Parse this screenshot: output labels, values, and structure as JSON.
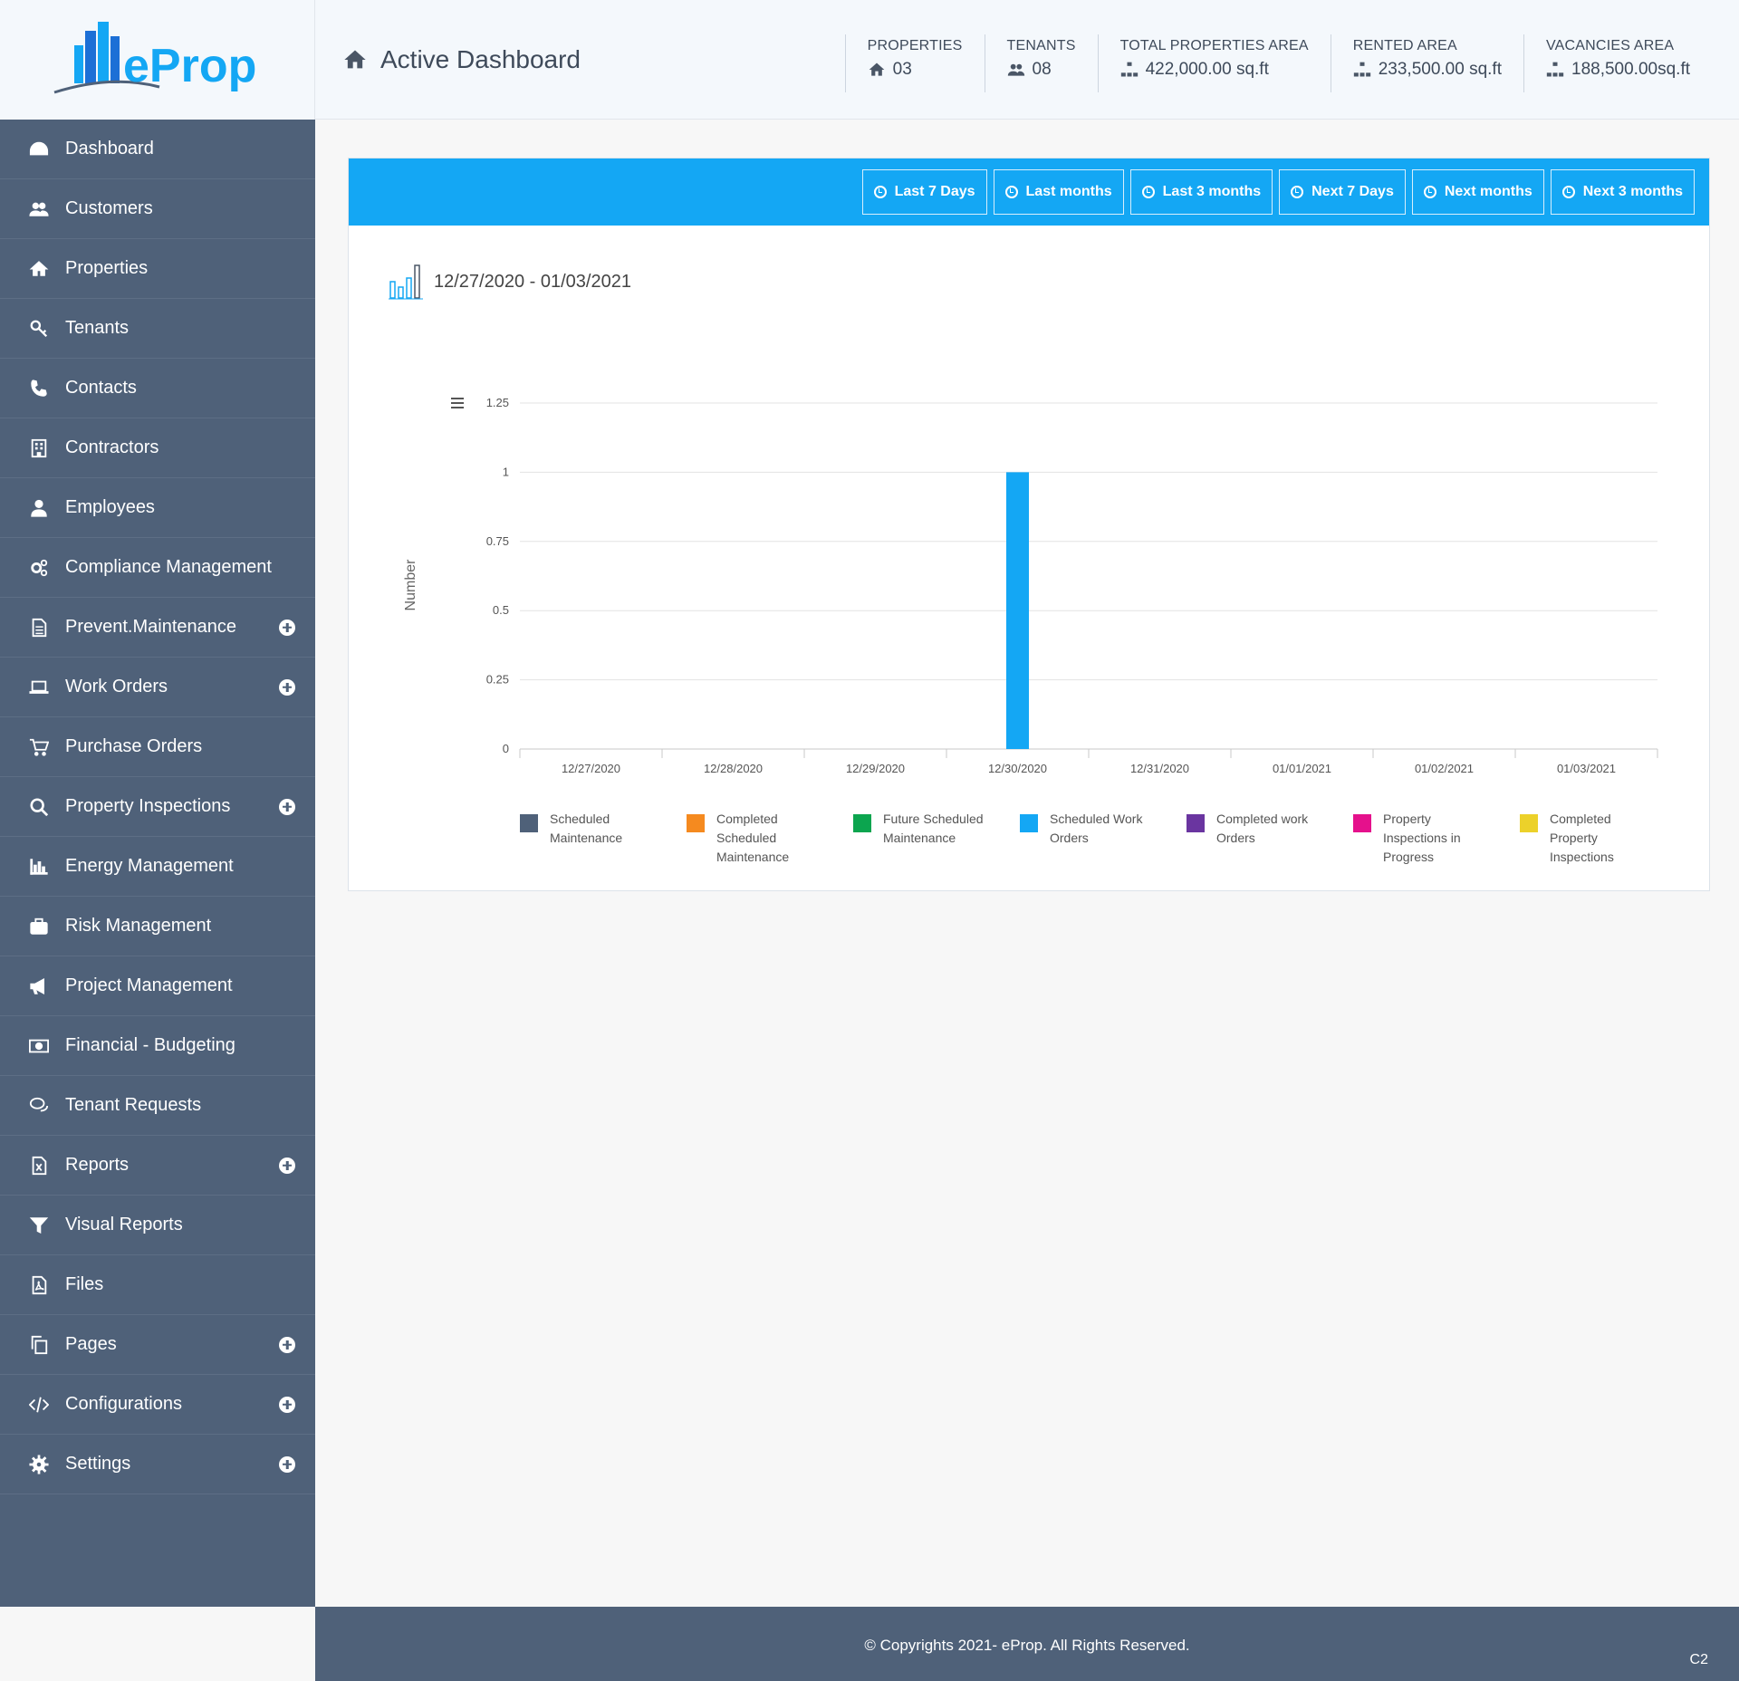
{
  "brand": {
    "logo_text": "eProp",
    "accent": "#14a7f4",
    "sidebar_bg": "#4f6179"
  },
  "header": {
    "title": "Active Dashboard",
    "stats": [
      {
        "label": "PROPERTIES",
        "value": "03",
        "icon": "home-icon"
      },
      {
        "label": "TENANTS",
        "value": "08",
        "icon": "users-icon"
      },
      {
        "label": "TOTAL PROPERTIES AREA",
        "value": "422,000.00 sq.ft",
        "icon": "sitemap-icon"
      },
      {
        "label": "RENTED AREA",
        "value": "233,500.00 sq.ft",
        "icon": "sitemap-icon"
      },
      {
        "label": "VACANCIES AREA",
        "value": "188,500.00sq.ft",
        "icon": "sitemap-icon"
      }
    ]
  },
  "sidebar": {
    "items": [
      {
        "label": "Dashboard",
        "icon": "dashboard-icon",
        "expandable": false
      },
      {
        "label": "Customers",
        "icon": "users-icon",
        "expandable": false
      },
      {
        "label": "Properties",
        "icon": "home-icon",
        "expandable": false
      },
      {
        "label": "Tenants",
        "icon": "key-icon",
        "expandable": false
      },
      {
        "label": "Contacts",
        "icon": "phone-icon",
        "expandable": false
      },
      {
        "label": "Contractors",
        "icon": "building-icon",
        "expandable": false
      },
      {
        "label": "Employees",
        "icon": "user-icon",
        "expandable": false
      },
      {
        "label": "Compliance Management",
        "icon": "cogs-icon",
        "expandable": false
      },
      {
        "label": "Prevent.Maintenance",
        "icon": "document-icon",
        "expandable": true
      },
      {
        "label": "Work Orders",
        "icon": "laptop-icon",
        "expandable": true
      },
      {
        "label": "Purchase Orders",
        "icon": "cart-icon",
        "expandable": false
      },
      {
        "label": "Property Inspections",
        "icon": "search-icon",
        "expandable": true
      },
      {
        "label": "Energy Management",
        "icon": "bar-chart-icon",
        "expandable": false
      },
      {
        "label": "Risk Management",
        "icon": "briefcase-icon",
        "expandable": false
      },
      {
        "label": "Project Management",
        "icon": "megaphone-icon",
        "expandable": false
      },
      {
        "label": "Financial - Budgeting",
        "icon": "money-icon",
        "expandable": false
      },
      {
        "label": "Tenant Requests",
        "icon": "comments-icon",
        "expandable": false
      },
      {
        "label": "Reports",
        "icon": "excel-file-icon",
        "expandable": true
      },
      {
        "label": "Visual Reports",
        "icon": "filter-icon",
        "expandable": false
      },
      {
        "label": "Files",
        "icon": "pdf-file-icon",
        "expandable": false
      },
      {
        "label": "Pages",
        "icon": "copy-icon",
        "expandable": true
      },
      {
        "label": "Configurations",
        "icon": "code-icon",
        "expandable": true
      },
      {
        "label": "Settings",
        "icon": "gear-icon",
        "expandable": true
      }
    ]
  },
  "range_buttons": [
    "Last 7 Days",
    "Last months",
    "Last 3 months",
    "Next 7 Days",
    "Next months",
    "Next 3 months"
  ],
  "range_title": "12/27/2020 - 01/03/2021",
  "chart_data": {
    "type": "bar",
    "ylabel": "Number",
    "xlabel": "",
    "ylim": [
      0,
      1.25
    ],
    "y_ticks": [
      "0",
      "0.25",
      "0.5",
      "0.75",
      "1",
      "1.25"
    ],
    "y_tick_values": [
      0,
      0.25,
      0.5,
      0.75,
      1,
      1.25
    ],
    "categories": [
      "12/27/2020",
      "12/28/2020",
      "12/29/2020",
      "12/30/2020",
      "12/31/2020",
      "01/01/2021",
      "01/02/2021",
      "01/03/2021"
    ],
    "grid": true,
    "legend_placement": "bottom",
    "series": [
      {
        "name": "Scheduled Maintenance",
        "color": "#4f6179",
        "values": [
          0,
          0,
          0,
          0,
          0,
          0,
          0,
          0
        ]
      },
      {
        "name": "Completed Scheduled Maintenance",
        "color": "#f58a1f",
        "values": [
          0,
          0,
          0,
          0,
          0,
          0,
          0,
          0
        ]
      },
      {
        "name": "Future Scheduled Maintenance",
        "color": "#0ca54f",
        "values": [
          0,
          0,
          0,
          0,
          0,
          0,
          0,
          0
        ]
      },
      {
        "name": "Scheduled Work Orders",
        "color": "#14a7f4",
        "values": [
          0,
          0,
          0,
          1,
          0,
          0,
          0,
          0
        ]
      },
      {
        "name": "Completed work Orders",
        "color": "#6a35a0",
        "values": [
          0,
          0,
          0,
          0,
          0,
          0,
          0,
          0
        ]
      },
      {
        "name": "Property Inspections in Progress",
        "color": "#e5118c",
        "values": [
          0,
          0,
          0,
          0,
          0,
          0,
          0,
          0
        ]
      },
      {
        "name": "Completed Property Inspections",
        "color": "#ecd12a",
        "values": [
          0,
          0,
          0,
          0,
          0,
          0,
          0,
          0
        ]
      }
    ]
  },
  "footer": {
    "copyright": "© Copyrights 2021- eProp. All Rights Reserved.",
    "version": "C2"
  }
}
